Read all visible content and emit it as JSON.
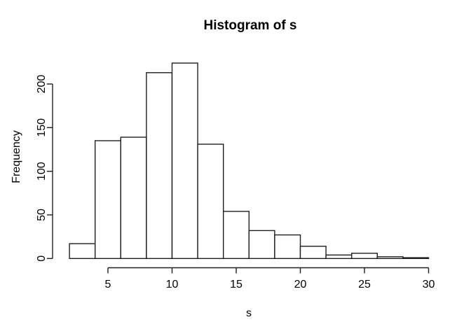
{
  "figure": {
    "background": "#ffffff"
  },
  "colors": {
    "bar_fill": "#ffffff",
    "bar_border": "#1f1f1f",
    "axis": "#1f1f1f",
    "text": "#000000",
    "background": "#ffffff"
  },
  "chart_data": {
    "type": "bar",
    "subtype": "histogram",
    "title": "Histogram of s",
    "xlabel": "s",
    "ylabel": "Frequency",
    "bin_edges": [
      2,
      4,
      6,
      8,
      10,
      12,
      14,
      16,
      18,
      20,
      22,
      24,
      26,
      28,
      30
    ],
    "values": [
      17,
      135,
      139,
      213,
      224,
      131,
      54,
      32,
      27,
      14,
      4,
      6,
      2,
      1
    ],
    "x_ticks": [
      5,
      10,
      15,
      20,
      25,
      30
    ],
    "y_ticks": [
      0,
      50,
      100,
      150,
      200
    ],
    "xlim": [
      2,
      30
    ],
    "ylim": [
      0,
      224
    ],
    "y_axis_range": [
      0,
      200
    ],
    "grid": false,
    "legend": null
  }
}
